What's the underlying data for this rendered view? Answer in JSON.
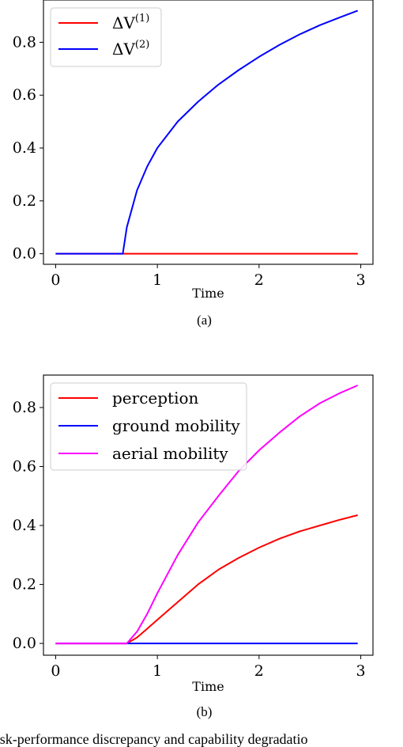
{
  "chart_data": [
    {
      "type": "line",
      "panel_label": "(a)",
      "xlabel": "Time",
      "ylabel": "",
      "xlim": [
        -0.12,
        3.12
      ],
      "ylim": [
        -0.04,
        0.96
      ],
      "xticks": [
        "0",
        "1",
        "2",
        "3"
      ],
      "yticks": [
        "0.0",
        "0.2",
        "0.4",
        "0.6",
        "0.8"
      ],
      "grid": false,
      "legend_position": "top-left",
      "series": [
        {
          "name": "ΔV(1)",
          "legend_base": "ΔV",
          "legend_sup": "(1)",
          "color": "#ff0000",
          "x": [
            0,
            0.5,
            1.0,
            1.5,
            2.0,
            2.5,
            2.97
          ],
          "y": [
            0,
            0,
            0,
            0,
            0,
            0,
            0
          ]
        },
        {
          "name": "ΔV(2)",
          "legend_base": "ΔV",
          "legend_sup": "(2)",
          "color": "#0000ff",
          "x": [
            0,
            0.3,
            0.66,
            0.7,
            0.8,
            0.9,
            1.0,
            1.2,
            1.4,
            1.6,
            1.8,
            2.0,
            2.2,
            2.4,
            2.6,
            2.8,
            2.97
          ],
          "y": [
            0,
            0,
            0,
            0.1,
            0.24,
            0.33,
            0.4,
            0.5,
            0.575,
            0.64,
            0.695,
            0.745,
            0.79,
            0.83,
            0.865,
            0.895,
            0.92
          ]
        }
      ]
    },
    {
      "type": "line",
      "panel_label": "(b)",
      "xlabel": "Time",
      "ylabel": "",
      "xlim": [
        -0.12,
        3.12
      ],
      "ylim": [
        -0.04,
        0.91
      ],
      "xticks": [
        "0",
        "1",
        "2",
        "3"
      ],
      "yticks": [
        "0.0",
        "0.2",
        "0.4",
        "0.6",
        "0.8"
      ],
      "grid": false,
      "legend_position": "top-left",
      "series": [
        {
          "name": "perception",
          "color": "#ff0000",
          "x": [
            0,
            0.4,
            0.7,
            0.8,
            0.9,
            1.0,
            1.2,
            1.4,
            1.6,
            1.8,
            2.0,
            2.2,
            2.4,
            2.6,
            2.8,
            2.97
          ],
          "y": [
            0,
            0,
            0,
            0.02,
            0.05,
            0.08,
            0.14,
            0.2,
            0.25,
            0.29,
            0.325,
            0.355,
            0.38,
            0.4,
            0.42,
            0.435
          ]
        },
        {
          "name": "ground mobility",
          "color": "#0000ff",
          "x": [
            0,
            0.5,
            1.0,
            1.5,
            2.0,
            2.5,
            2.97
          ],
          "y": [
            0,
            0,
            0,
            0,
            0,
            0,
            0
          ]
        },
        {
          "name": "aerial mobility",
          "color": "#ff00ff",
          "x": [
            0,
            0.4,
            0.7,
            0.8,
            0.9,
            1.0,
            1.2,
            1.4,
            1.6,
            1.8,
            2.0,
            2.2,
            2.4,
            2.6,
            2.8,
            2.97
          ],
          "y": [
            0,
            0,
            0,
            0.04,
            0.1,
            0.17,
            0.3,
            0.41,
            0.5,
            0.585,
            0.655,
            0.715,
            0.77,
            0.815,
            0.85,
            0.875
          ]
        }
      ]
    }
  ],
  "caption": {
    "text": "Task-performance discrepancy and capability degradatio"
  }
}
